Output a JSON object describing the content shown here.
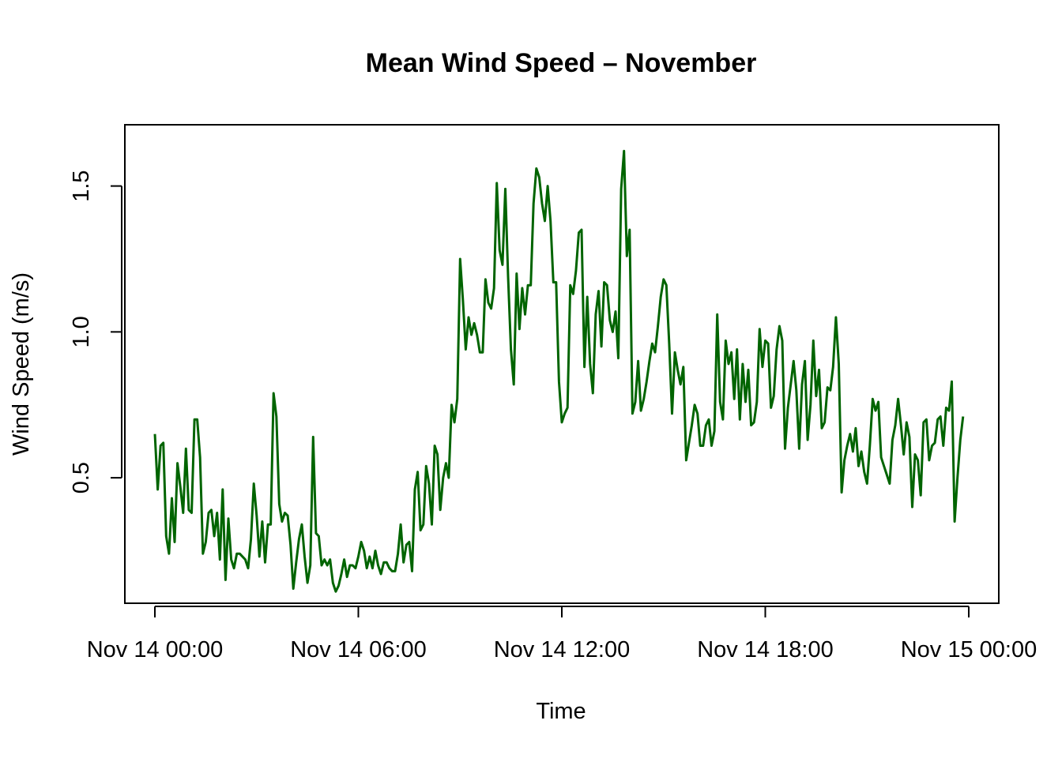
{
  "chart_data": {
    "type": "line",
    "title": "Mean Wind Speed – November",
    "xlabel": "Time",
    "ylabel": "Wind Speed (m/s)",
    "x_ticks": [
      "Nov 14 00:00",
      "Nov 14 06:00",
      "Nov 14 12:00",
      "Nov 14 18:00",
      "Nov 15 00:00"
    ],
    "y_ticks": [
      "0.5",
      "1.0",
      "1.5"
    ],
    "ylim": [
      0.07,
      1.71
    ],
    "line_color": "#006400",
    "grid": false,
    "legend": "none",
    "sample_interval": "5 min",
    "x_start": "Nov 14 00:00",
    "x_end": "Nov 15 00:00",
    "series": [
      {
        "values": [
          0.65,
          0.46,
          0.61,
          0.62,
          0.3,
          0.24,
          0.43,
          0.28,
          0.55,
          0.47,
          0.38,
          0.6,
          0.39,
          0.38,
          0.7,
          0.7,
          0.57,
          0.24,
          0.28,
          0.38,
          0.39,
          0.3,
          0.38,
          0.22,
          0.46,
          0.15,
          0.36,
          0.22,
          0.19,
          0.24,
          0.24,
          0.23,
          0.22,
          0.19,
          0.29,
          0.48,
          0.37,
          0.23,
          0.35,
          0.21,
          0.34,
          0.34,
          0.79,
          0.71,
          0.41,
          0.35,
          0.38,
          0.37,
          0.27,
          0.12,
          0.21,
          0.29,
          0.34,
          0.23,
          0.14,
          0.2,
          0.64,
          0.31,
          0.3,
          0.2,
          0.22,
          0.2,
          0.22,
          0.14,
          0.11,
          0.13,
          0.17,
          0.22,
          0.16,
          0.2,
          0.2,
          0.19,
          0.23,
          0.28,
          0.25,
          0.19,
          0.23,
          0.19,
          0.25,
          0.2,
          0.17,
          0.21,
          0.21,
          0.19,
          0.18,
          0.18,
          0.24,
          0.34,
          0.21,
          0.27,
          0.28,
          0.18,
          0.46,
          0.52,
          0.32,
          0.34,
          0.54,
          0.48,
          0.34,
          0.61,
          0.58,
          0.39,
          0.5,
          0.55,
          0.5,
          0.75,
          0.69,
          0.77,
          1.25,
          1.11,
          0.94,
          1.05,
          0.99,
          1.03,
          0.99,
          0.93,
          0.93,
          1.18,
          1.1,
          1.08,
          1.15,
          1.51,
          1.28,
          1.23,
          1.49,
          1.19,
          0.94,
          0.82,
          1.2,
          1.01,
          1.15,
          1.06,
          1.16,
          1.16,
          1.44,
          1.56,
          1.53,
          1.44,
          1.38,
          1.5,
          1.38,
          1.17,
          1.17,
          0.83,
          0.69,
          0.72,
          0.74,
          1.16,
          1.13,
          1.21,
          1.34,
          1.35,
          0.88,
          1.12,
          0.89,
          0.79,
          1.06,
          1.14,
          0.95,
          1.17,
          1.16,
          1.04,
          1.0,
          1.07,
          0.91,
          1.49,
          1.62,
          1.26,
          1.35,
          0.72,
          0.76,
          0.9,
          0.73,
          0.77,
          0.83,
          0.9,
          0.96,
          0.93,
          1.02,
          1.12,
          1.18,
          1.16,
          0.96,
          0.72,
          0.93,
          0.87,
          0.82,
          0.88,
          0.56,
          0.62,
          0.68,
          0.75,
          0.72,
          0.61,
          0.61,
          0.68,
          0.7,
          0.61,
          0.66,
          1.06,
          0.76,
          0.7,
          0.97,
          0.89,
          0.93,
          0.77,
          0.94,
          0.7,
          0.89,
          0.76,
          0.87,
          0.68,
          0.69,
          0.76,
          1.01,
          0.88,
          0.97,
          0.96,
          0.74,
          0.78,
          0.94,
          1.02,
          0.97,
          0.6,
          0.74,
          0.82,
          0.9,
          0.8,
          0.6,
          0.82,
          0.9,
          0.63,
          0.75,
          0.97,
          0.78,
          0.87,
          0.67,
          0.69,
          0.81,
          0.8,
          0.88,
          1.05,
          0.89,
          0.45,
          0.56,
          0.61,
          0.65,
          0.59,
          0.67,
          0.54,
          0.59,
          0.52,
          0.48,
          0.61,
          0.77,
          0.73,
          0.76,
          0.57,
          0.54,
          0.51,
          0.48,
          0.63,
          0.68,
          0.77,
          0.68,
          0.58,
          0.69,
          0.64,
          0.4,
          0.58,
          0.56,
          0.44,
          0.69,
          0.7,
          0.56,
          0.61,
          0.62,
          0.7,
          0.71,
          0.61,
          0.74,
          0.73,
          0.83,
          0.35,
          0.5,
          0.63,
          0.71
        ]
      }
    ]
  }
}
